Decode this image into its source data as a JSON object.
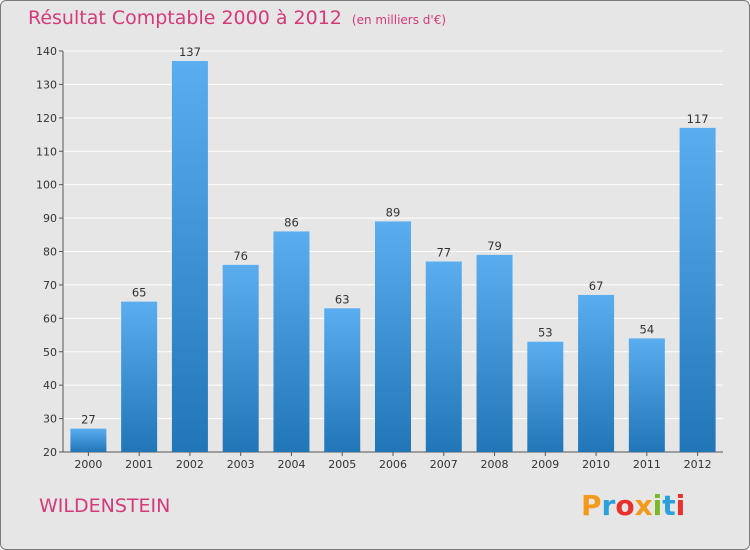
{
  "title": {
    "main": "Résultat Comptable 2000 à 2012",
    "unit": "(en milliers d'€)"
  },
  "commune": "WILDENSTEIN",
  "logo": {
    "letters": [
      "P",
      "r",
      "o",
      "x",
      "i",
      "t",
      "i"
    ],
    "colors": [
      "#f39a1d",
      "#2aa0dc",
      "#e8302d",
      "#f39a1d",
      "#7cb928",
      "#2aa0dc",
      "#e8302d"
    ]
  },
  "colors": {
    "bar_light": "#5aaef0",
    "bar_dark": "#2176b8",
    "grid": "#ffffff",
    "background": "#e6e6e6"
  },
  "chart_data": {
    "type": "bar",
    "categories": [
      "2000",
      "2001",
      "2002",
      "2003",
      "2004",
      "2005",
      "2006",
      "2007",
      "2008",
      "2009",
      "2010",
      "2011",
      "2012"
    ],
    "values": [
      27,
      65,
      137,
      76,
      86,
      63,
      89,
      77,
      79,
      53,
      67,
      54,
      117
    ],
    "data_labels": [
      "27",
      "65",
      "137",
      "76",
      "86",
      "63",
      "89",
      "77",
      "79",
      "53",
      "67",
      "54",
      "117"
    ],
    "yticks": [
      "20",
      "30",
      "40",
      "50",
      "60",
      "70",
      "80",
      "90",
      "100",
      "110",
      "120",
      "130",
      "140"
    ],
    "ylim": [
      20,
      140
    ],
    "grid": true,
    "legend": "none"
  }
}
